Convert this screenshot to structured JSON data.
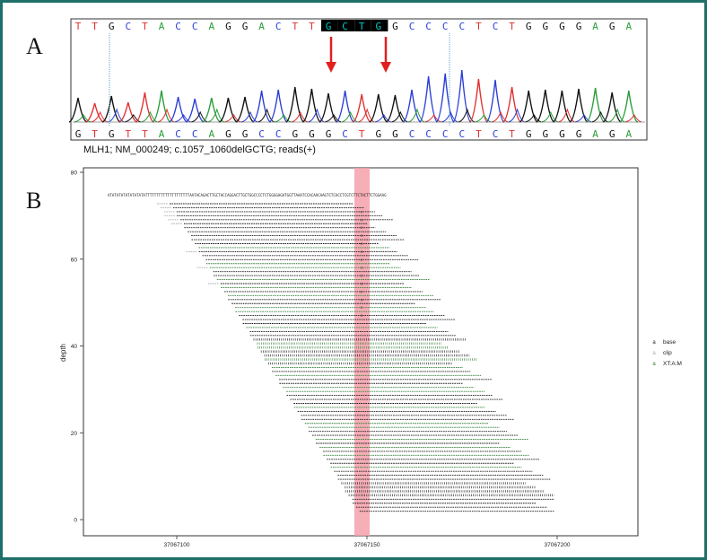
{
  "panel_a": {
    "label": "A",
    "top_sequence": [
      "T",
      "T",
      "G",
      "C",
      "T",
      "A",
      "C",
      "C",
      "A",
      "G",
      "G",
      "A",
      "C",
      "T",
      "T",
      "G",
      "C",
      "T",
      "G",
      "G",
      "C",
      "C",
      "C",
      "C",
      "T",
      "C",
      "T",
      "G",
      "G",
      "G",
      "G",
      "A",
      "G",
      "A"
    ],
    "bottom_sequence": [
      "G",
      "T",
      "G",
      "T",
      "T",
      "A",
      "C",
      "C",
      "A",
      "G",
      "G",
      "C",
      "C",
      "G",
      "G",
      "G",
      "C",
      "T",
      "G",
      "G",
      "C",
      "C",
      "C",
      "C",
      "T",
      "C",
      "T",
      "G",
      "G",
      "G",
      "G",
      "A",
      "G",
      "A"
    ],
    "highlighted_bases": "GCTG",
    "caption": "MLH1; NM_000249; c.1057_1060delGCTG; reads(+)",
    "colors": {
      "T": "#e03030",
      "A": "#2a9d3a",
      "G": "#111111",
      "C": "#2b3fd6",
      "highlight_bg": "#000000",
      "highlight_text": "#00c8c8",
      "arrow": "#e02020"
    }
  },
  "panel_b": {
    "label": "B",
    "reference_sequence": "ATATATATATATATATATTTTTTTTTTTTTTTTTTTTAATACAGACTTGCTACCAGGACTTGCTGGCCCCTCTGGGGAGATGGTTAAATCCACAACAAGTCTCACCTCGTCTTCTACTTCTGGAAG",
    "y_axis_title": "depth",
    "y_ticks": [
      "0",
      "20",
      "40",
      "60",
      "80"
    ],
    "x_ticks": [
      "37067100",
      "37067150",
      "37067200"
    ],
    "legend": [
      {
        "label": "base",
        "color": "#222222",
        "symbol": "a"
      },
      {
        "label": "clip",
        "color": "#aaaaaa",
        "symbol": "a"
      },
      {
        "label": "XT:A:M",
        "color": "#2e7d32",
        "symbol": "a"
      }
    ],
    "highlight_color": "#f4a0aa"
  }
}
